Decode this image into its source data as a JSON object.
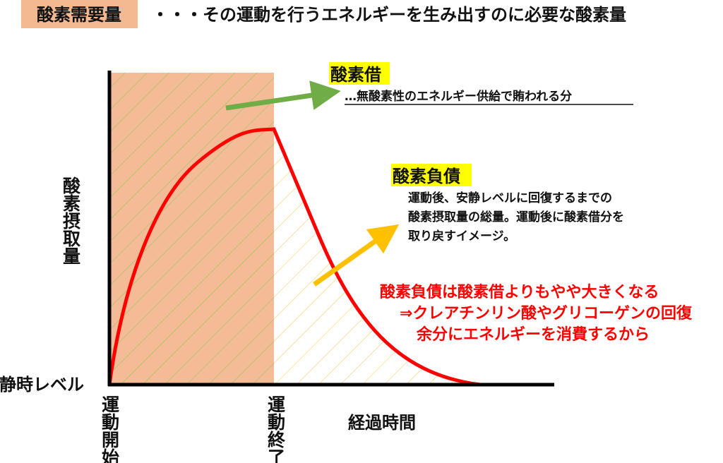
{
  "header": {
    "term": "酸素需要量",
    "definition": "・・・その運動を行うエネルギーを生み出すのに必要な酸素量"
  },
  "oxygen_deficit": {
    "title": "酸素借",
    "description": "…無酸素性のエネルギー供給で賄われる分"
  },
  "oxygen_debt": {
    "title": "酸素負債",
    "lines": [
      "運動後、安静レベルに回復するまでの",
      "酸素摂取量の総量。運動後に酸素借分を",
      "取り戻すイメージ。"
    ]
  },
  "note": {
    "lines": [
      "酸素負債は酸素借よりもやや大きくなる",
      "⇒クレアチンリン酸やグリコーゲンの回復",
      "余分にエネルギーを消費するから"
    ]
  },
  "axes": {
    "y_label": "酸素摂取量",
    "rest_level": "安静時レベル",
    "start": "運動開始",
    "end": "運動終了",
    "x_label": "経過時間"
  }
}
